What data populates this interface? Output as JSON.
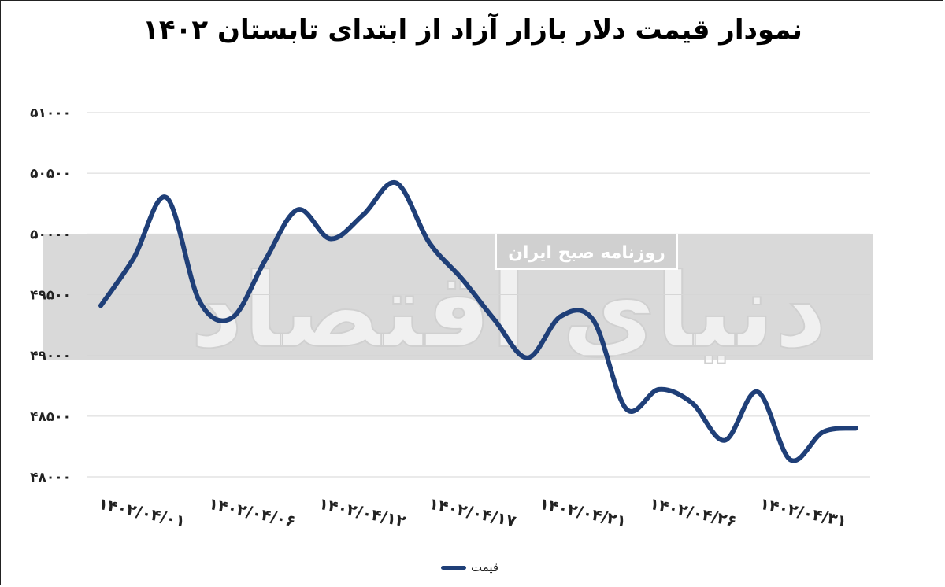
{
  "chart_data": {
    "type": "line",
    "title": "نمودار قیمت دلار بازار آزاد از ابتدای تابستان ۱۴۰۲",
    "xlabel": "",
    "ylabel": "",
    "ylim": [
      48000,
      51000
    ],
    "yticks": [
      48000,
      48500,
      49000,
      49500,
      50000,
      50500,
      51000
    ],
    "ytick_labels": [
      "۴۸۰۰۰",
      "۴۸۵۰۰",
      "۴۹۰۰۰",
      "۴۹۵۰۰",
      "۵۰۰۰۰",
      "۵۰۵۰۰",
      "۵۱۰۰۰"
    ],
    "grid": true,
    "legend_position": "bottom",
    "x_tick_labels": [
      "۱۴۰۲/۰۴/۰۱",
      "۱۴۰۲/۰۴/۰۶",
      "۱۴۰۲/۰۴/۱۲",
      "۱۴۰۲/۰۴/۱۷",
      "۱۴۰۲/۰۴/۲۱",
      "۱۴۰۲/۰۴/۲۶",
      "۱۴۰۲/۰۴/۳۱"
    ],
    "series": [
      {
        "name": "قیمت",
        "color": "#1f3f78",
        "values": [
          49410,
          49800,
          50300,
          49450,
          49310,
          49780,
          50200,
          49960,
          50160,
          50420,
          49930,
          49630,
          49290,
          48980,
          49320,
          49290,
          48560,
          48720,
          48610,
          48300,
          48700,
          48140,
          48370,
          48400
        ]
      }
    ]
  },
  "watermark": {
    "brand": "دنیای اقتصاد",
    "tagline": "روزنامه صبح ایران"
  }
}
